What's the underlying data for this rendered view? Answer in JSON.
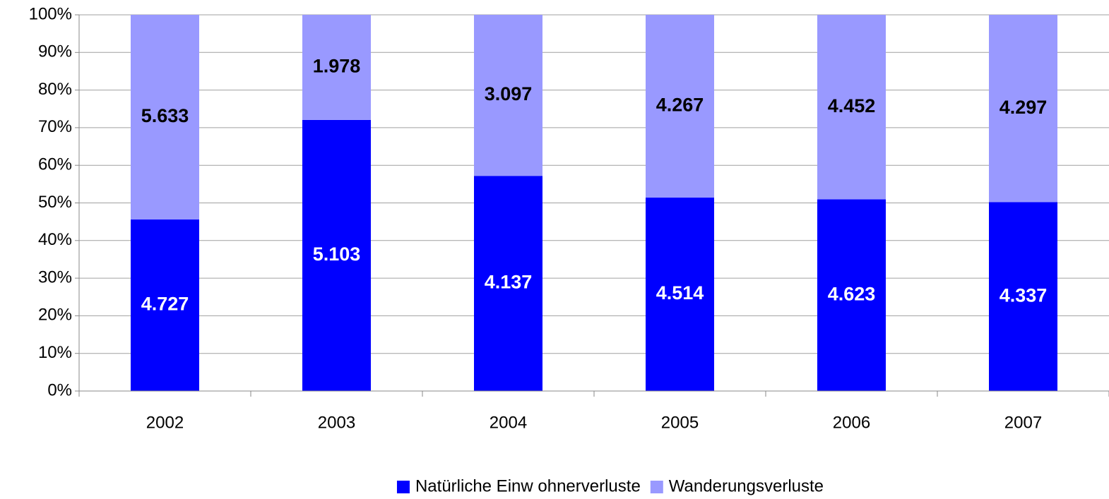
{
  "chart_data": {
    "type": "bar",
    "stacked": "percent",
    "categories": [
      "2002",
      "2003",
      "2004",
      "2005",
      "2006",
      "2007"
    ],
    "series": [
      {
        "name": "Natürliche Einw ohnerverluste",
        "color": "#0000ff",
        "label_color": "#ffffff",
        "values": [
          4727,
          5103,
          4137,
          4514,
          4623,
          4337
        ],
        "value_labels": [
          "4.727",
          "5.103",
          "4.137",
          "4.514",
          "4.623",
          "4.337"
        ]
      },
      {
        "name": "Wanderungsverluste",
        "color": "#9999ff",
        "label_color": "#000000",
        "values": [
          5633,
          1978,
          3097,
          4267,
          4452,
          4297
        ],
        "value_labels": [
          "5.633",
          "1.978",
          "3.097",
          "4.267",
          "4.452",
          "4.297"
        ]
      }
    ],
    "ylim": [
      0,
      100
    ],
    "yticks": [
      {
        "value": 0,
        "label": "0%"
      },
      {
        "value": 10,
        "label": "10%"
      },
      {
        "value": 20,
        "label": "20%"
      },
      {
        "value": 30,
        "label": "30%"
      },
      {
        "value": 40,
        "label": "40%"
      },
      {
        "value": 50,
        "label": "50%"
      },
      {
        "value": 60,
        "label": "60%"
      },
      {
        "value": 70,
        "label": "70%"
      },
      {
        "value": 80,
        "label": "80%"
      },
      {
        "value": 90,
        "label": "90%"
      },
      {
        "value": 100,
        "label": "100%"
      }
    ],
    "grid": true,
    "legend": "bottom"
  }
}
